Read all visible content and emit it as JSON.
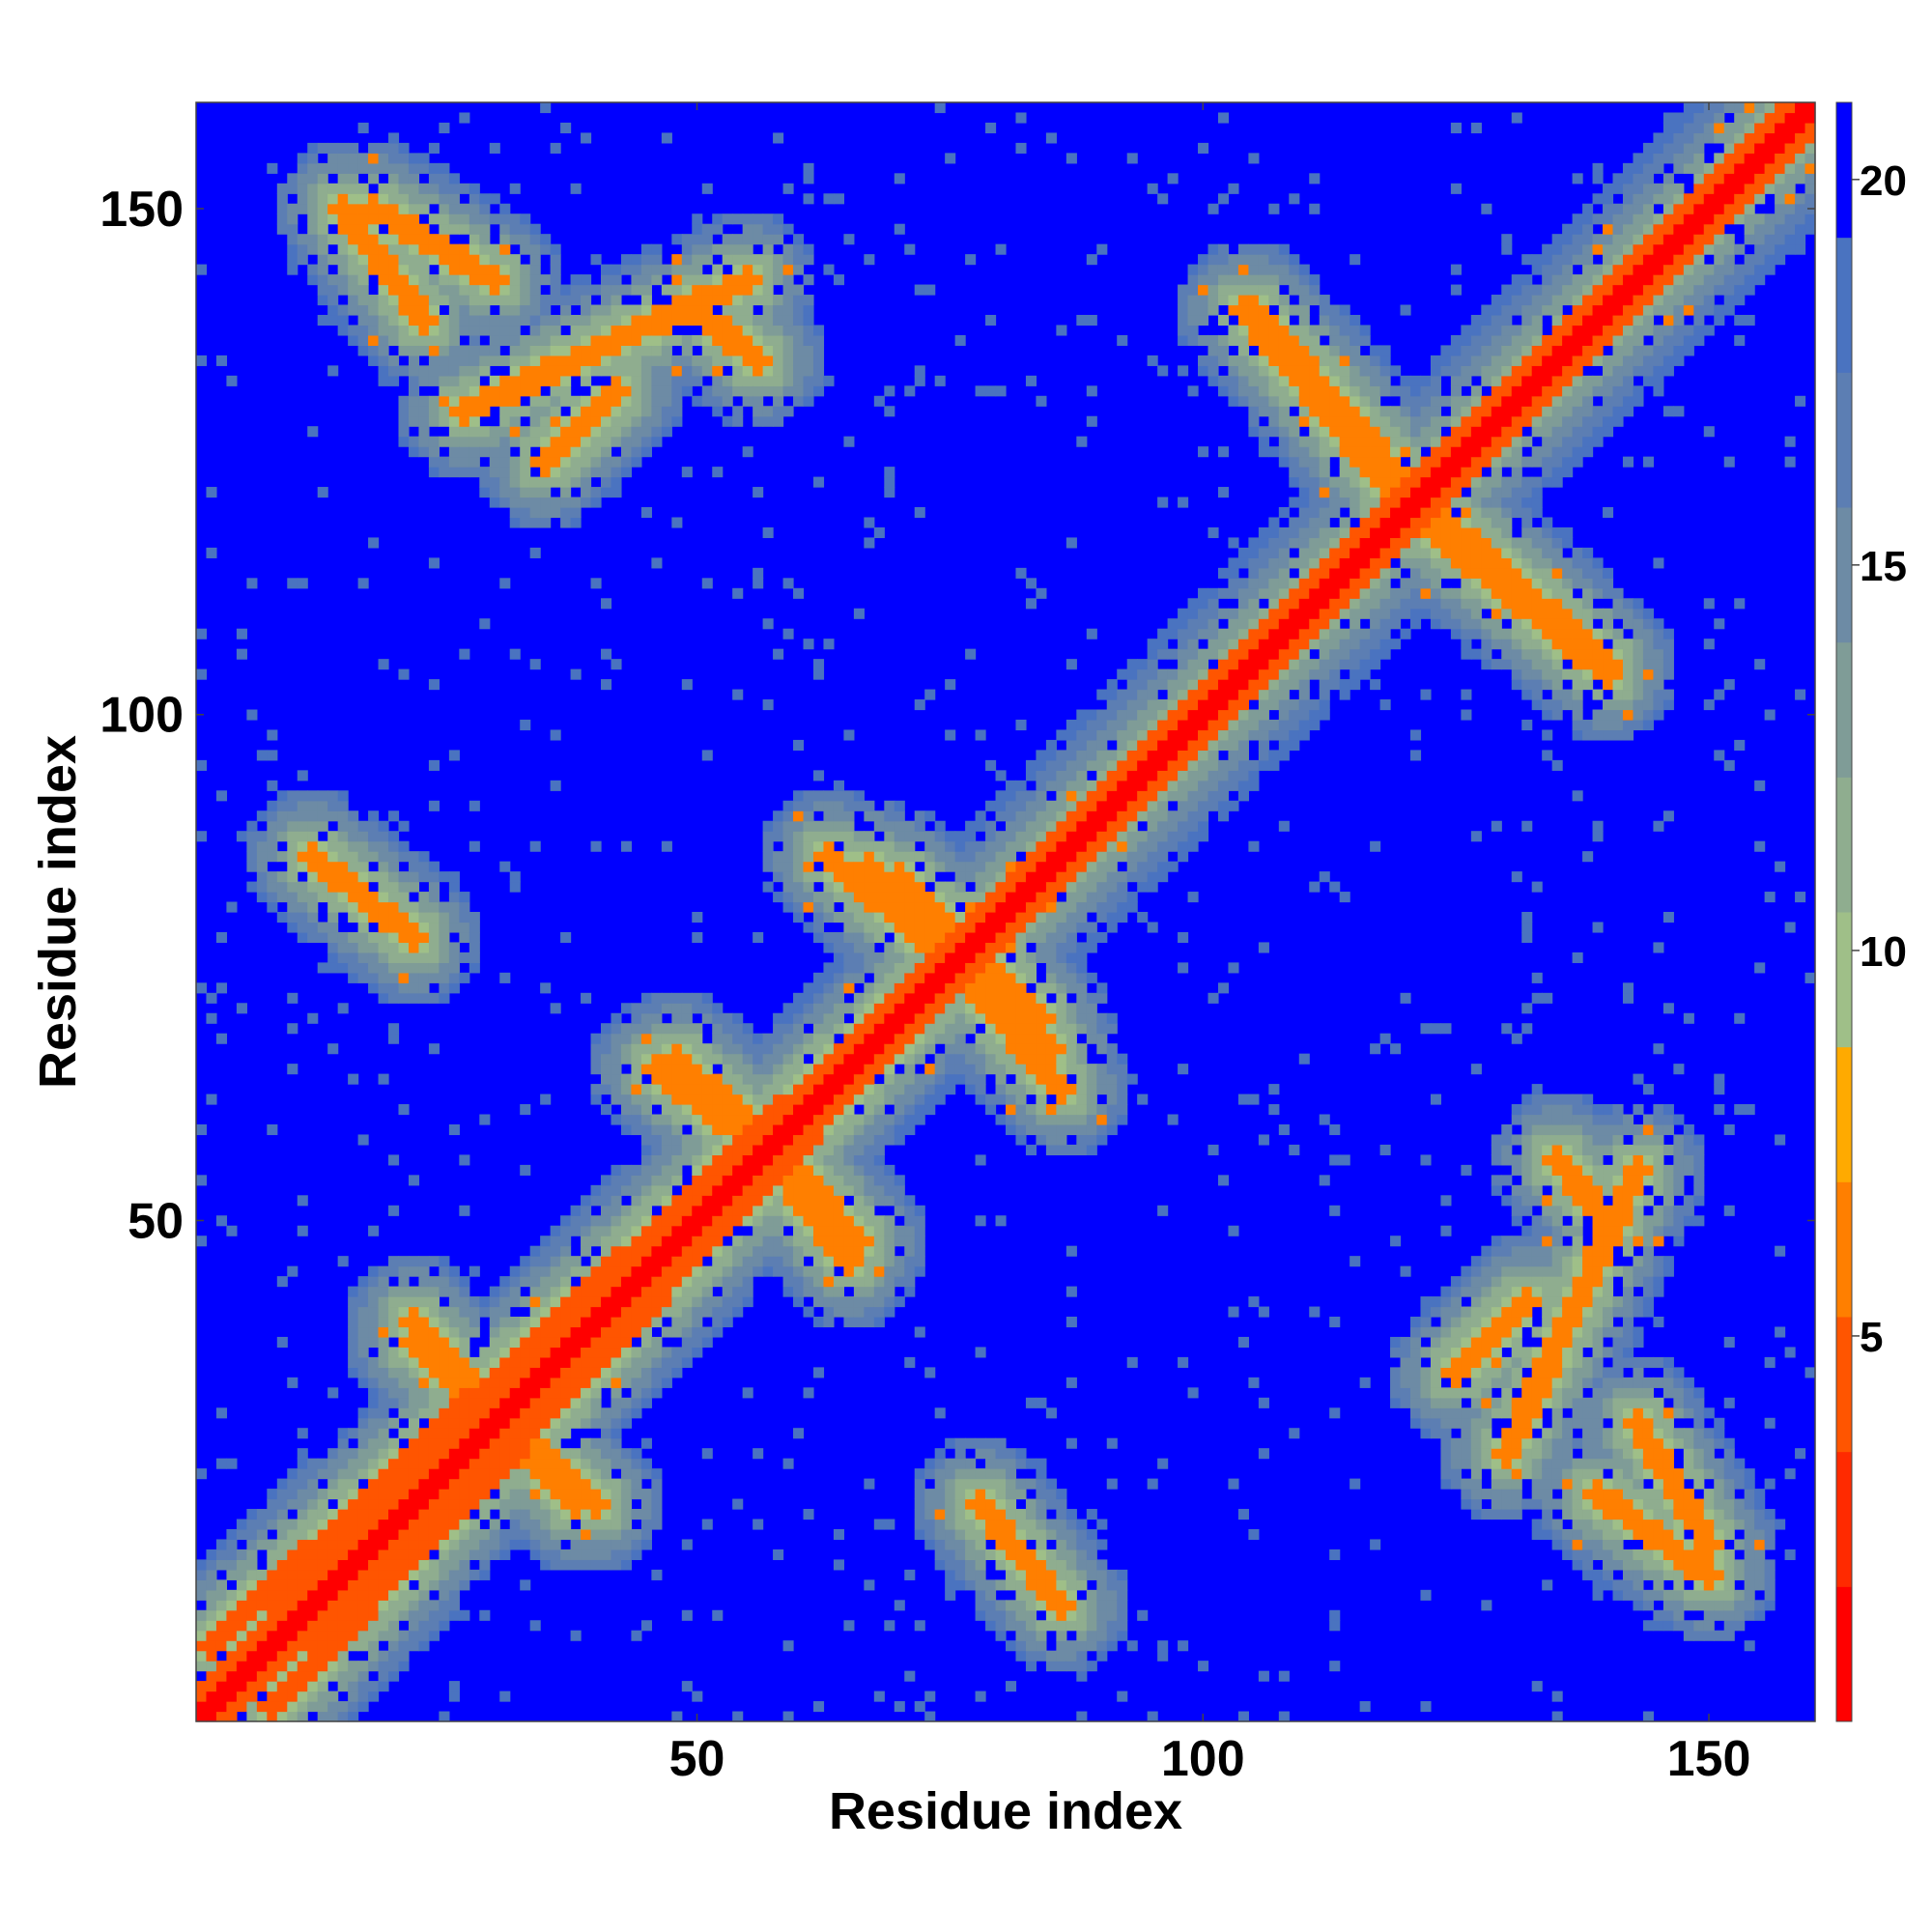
{
  "chart_data": {
    "type": "heatmap",
    "title": "",
    "xlabel": "Residue index",
    "ylabel": "Residue index",
    "n_residues": 160,
    "xlim": [
      1,
      160
    ],
    "ylim": [
      1,
      160
    ],
    "x_ticks": [
      50,
      100,
      150
    ],
    "y_ticks": [
      50,
      100,
      150
    ],
    "colorbar": {
      "range": [
        0,
        21
      ],
      "ticks": [
        5,
        10,
        15,
        20
      ],
      "level_colors": [
        "#ff0000",
        "#ff2a00",
        "#ff5500",
        "#ff7f00",
        "#ffaa00",
        "#9fbf88",
        "#8fad8f",
        "#7f9c97",
        "#6d8ba5",
        "#5c7eb3",
        "#4a73c0",
        "#0000ff"
      ]
    },
    "cell_values_A": "distance map: 0-2 on the main diagonal, ~7 along helix and strand contact bands, 8-19 in surrounding shells, 21 (blue) where residues are far apart",
    "contact_bands": [
      {
        "kind": "diagonal",
        "value": 1
      },
      {
        "kind": "parallel",
        "from": [
          8,
          2
        ],
        "to": [
          95,
          95
        ],
        "offset": 3,
        "value": 5
      },
      {
        "kind": "anti",
        "from": [
          15,
          150
        ],
        "to": [
          23,
          139
        ],
        "value": 6
      },
      {
        "kind": "anti",
        "from": [
          27,
          130
        ],
        "to": [
          55,
          143
        ],
        "value": 6
      },
      {
        "kind": "anti",
        "from": [
          105,
          140
        ],
        "to": [
          120,
          123
        ],
        "value": 6
      },
      {
        "kind": "anti",
        "from": [
          123,
          118
        ],
        "to": [
          140,
          104
        ],
        "value": 6
      },
      {
        "kind": "anti",
        "from": [
          12,
          86
        ],
        "to": [
          22,
          78
        ],
        "value": 6
      },
      {
        "kind": "anti",
        "from": [
          63,
          86
        ],
        "to": [
          85,
          67
        ],
        "value": 6
      },
      {
        "kind": "anti",
        "from": [
          70,
          84
        ],
        "to": [
          84,
          70
        ],
        "value": 6
      },
      {
        "kind": "anti",
        "from": [
          48,
          66
        ],
        "to": [
          57,
          58
        ],
        "value": 6
      },
      {
        "kind": "anti",
        "from": [
          58,
          55
        ],
        "to": [
          65,
          46
        ],
        "value": 6
      },
      {
        "kind": "anti",
        "from": [
          22,
          38
        ],
        "to": [
          40,
          22
        ],
        "value": 6
      },
      {
        "kind": "anti",
        "from": [
          78,
          22
        ],
        "to": [
          86,
          12
        ],
        "value": 6
      },
      {
        "kind": "anti",
        "from": [
          135,
          56
        ],
        "to": [
          140,
          50
        ],
        "value": 6
      },
      {
        "kind": "anti",
        "from": [
          125,
          35
        ],
        "to": [
          132,
          42
        ],
        "value": 6
      },
      {
        "kind": "anti",
        "from": [
          143,
          30
        ],
        "to": [
          150,
          18
        ],
        "value": 6
      }
    ]
  }
}
